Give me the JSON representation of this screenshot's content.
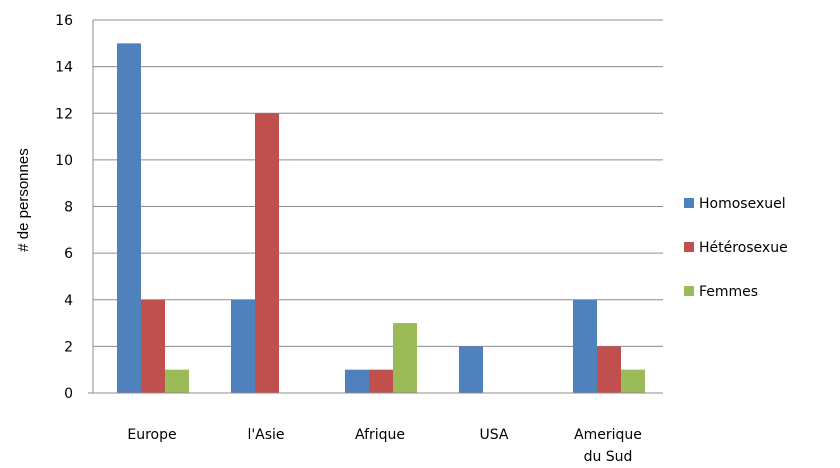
{
  "chart_data": {
    "type": "bar",
    "title": "",
    "xlabel": "",
    "ylabel": "# de personnes",
    "ylim": [
      0,
      16
    ],
    "yticks": [
      0,
      2,
      4,
      6,
      8,
      10,
      12,
      14,
      16
    ],
    "grid": true,
    "legend_position": "right",
    "categories": [
      [
        "Europe"
      ],
      [
        "l'Asie"
      ],
      [
        "Afrique"
      ],
      [
        "USA"
      ],
      [
        "Amerique",
        "du Sud"
      ]
    ],
    "series": [
      {
        "name": "Homosexuel",
        "color": "#4f81bd",
        "values": [
          15,
          4,
          1,
          2,
          4
        ]
      },
      {
        "name": "Hétérosexue",
        "color": "#c0504d",
        "values": [
          4,
          12,
          1,
          0,
          2
        ]
      },
      {
        "name": "Femmes",
        "color": "#9bbb59",
        "values": [
          1,
          0,
          3,
          0,
          1
        ]
      }
    ]
  }
}
